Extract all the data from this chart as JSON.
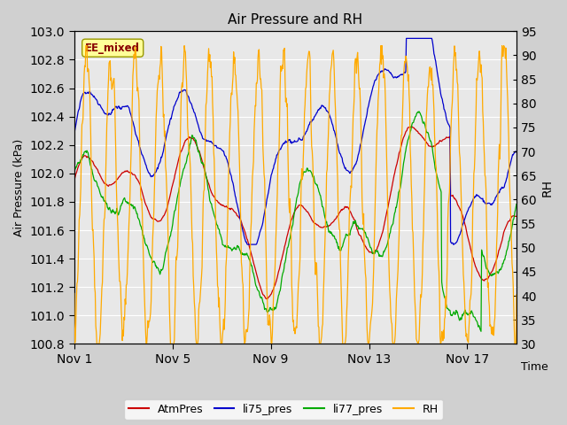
{
  "title": "Air Pressure and RH",
  "xlabel": "Time",
  "ylabel_left": "Air Pressure (kPa)",
  "ylabel_right": "RH",
  "ylim_left": [
    100.8,
    103.0
  ],
  "ylim_right": [
    30,
    95
  ],
  "yticks_left": [
    100.8,
    101.0,
    101.2,
    101.4,
    101.6,
    101.8,
    102.0,
    102.2,
    102.4,
    102.6,
    102.8,
    103.0
  ],
  "yticks_right": [
    30,
    35,
    40,
    45,
    50,
    55,
    60,
    65,
    70,
    75,
    80,
    85,
    90,
    95
  ],
  "xtick_labels": [
    "Nov 1",
    "Nov 5",
    "Nov 9",
    "Nov 13",
    "Nov 17"
  ],
  "xtick_positions": [
    0,
    4,
    8,
    12,
    16
  ],
  "xlim": [
    0,
    18
  ],
  "color_atm": "#cc0000",
  "color_li75": "#0000cc",
  "color_li77": "#00aa00",
  "color_rh": "#ffaa00",
  "fig_bg": "#d0d0d0",
  "plot_bg": "#e8e8e8",
  "grid_color": "#ffffff",
  "label_box_facecolor": "#ffff99",
  "label_box_edgecolor": "#999900",
  "label_text_color": "#880000",
  "legend_labels": [
    "AtmPres",
    "li75_pres",
    "li77_pres",
    "RH"
  ],
  "seed": 12345
}
